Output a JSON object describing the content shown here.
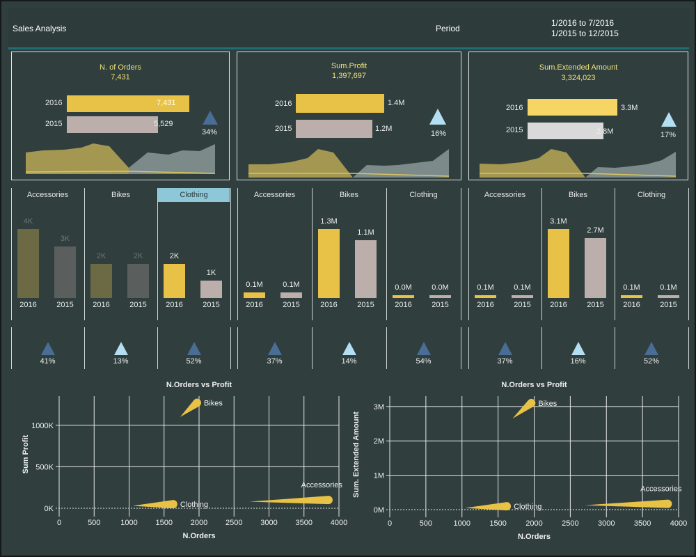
{
  "header": {
    "title": "Sales Analysis",
    "period_label": "Period",
    "range_current": "1/2016 to 7/2016",
    "range_previous": "1/2015 to 12/2015"
  },
  "colors": {
    "bg": "#303e3e",
    "accent": "#e8c246",
    "accent_light": "#f5d564",
    "prev": "#bbaeab",
    "prev_light": "#d9d9d9",
    "tri_dark": "#4a6d96",
    "tri_light": "#b4dff2"
  },
  "kpis": [
    {
      "title": "N. of Orders",
      "value": "7,431",
      "bars": [
        {
          "year": "2016",
          "label": "7,431",
          "v": 7431
        },
        {
          "year": "2015",
          "label": "5,529",
          "v": 5529
        }
      ],
      "pct": "34%",
      "tri": "dark",
      "max": 7431
    },
    {
      "title": "Sum.Profit",
      "value": "1,397,697",
      "bars": [
        {
          "year": "2016",
          "label": "1.4M",
          "v": 1.4
        },
        {
          "year": "2015",
          "label": "1.2M",
          "v": 1.2
        }
      ],
      "pct": "16%",
      "tri": "light",
      "max": 1.4
    },
    {
      "title": "Sum.Extended Amount",
      "value": "3,324,023",
      "bars": [
        {
          "year": "2016",
          "label": "3.3M",
          "v": 3.3
        },
        {
          "year": "2015",
          "label": "2.8M",
          "v": 2.8
        }
      ],
      "pct": "17%",
      "tri": "light",
      "max": 3.3
    }
  ],
  "chart_data": [
    {
      "type": "bar",
      "title": "",
      "categories": [
        "Accessories",
        "Bikes",
        "Clothing"
      ],
      "selected": "Clothing",
      "series": [
        {
          "name": "2016",
          "values": [
            4,
            2,
            2
          ],
          "labels": [
            "4K",
            "2K",
            "2K"
          ]
        },
        {
          "name": "2015",
          "values": [
            3,
            2,
            1
          ],
          "labels": [
            "3K",
            "2K",
            "1K"
          ]
        }
      ],
      "max": 4.7,
      "change": [
        "41%",
        "13%",
        "52%"
      ],
      "tri": [
        "dark",
        "light",
        "dark"
      ]
    },
    {
      "type": "bar",
      "title": "",
      "categories": [
        "Accessories",
        "Bikes",
        "Clothing"
      ],
      "series": [
        {
          "name": "2016",
          "values": [
            0.1,
            1.3,
            0.0
          ],
          "labels": [
            "0.1M",
            "1.3M",
            "0.0M"
          ]
        },
        {
          "name": "2015",
          "values": [
            0.1,
            1.1,
            0.0
          ],
          "labels": [
            "0.1M",
            "1.1M",
            "0.0M"
          ]
        }
      ],
      "max": 1.53,
      "change": [
        "37%",
        "14%",
        "54%"
      ],
      "tri": [
        "dark",
        "light",
        "dark"
      ]
    },
    {
      "type": "bar",
      "title": "",
      "categories": [
        "Accessories",
        "Bikes",
        "Clothing"
      ],
      "series": [
        {
          "name": "2016",
          "values": [
            0.1,
            3.1,
            0.1
          ],
          "labels": [
            "0.1M",
            "3.1M",
            "0.1M"
          ]
        },
        {
          "name": "2015",
          "values": [
            0.1,
            2.7,
            0.1
          ],
          "labels": [
            "0.1M",
            "2.7M",
            "0.1M"
          ]
        }
      ],
      "max": 3.65,
      "change": [
        "37%",
        "16%",
        "52%"
      ],
      "tri": [
        "dark",
        "light",
        "dark"
      ]
    },
    {
      "type": "scatter",
      "title": "N.Orders vs Profit",
      "xlabel": "N.Orders",
      "ylabel": "Sum Profit",
      "xlim": [
        0,
        4000
      ],
      "xticks": [
        0,
        500,
        1000,
        1500,
        2000,
        2500,
        3000,
        3500,
        4000
      ],
      "ylim": [
        -50,
        1350
      ],
      "yticks": [
        0,
        500,
        1000
      ],
      "ytick_labels": [
        "0K",
        "500K",
        "1000K"
      ],
      "points": [
        {
          "name": "Bikes",
          "from": [
            1730,
            1100
          ],
          "to": [
            1970,
            1270
          ]
        },
        {
          "name": "Clothing",
          "from": [
            1050,
            30
          ],
          "to": [
            1630,
            50
          ]
        },
        {
          "name": "Accessories",
          "from": [
            2720,
            80
          ],
          "to": [
            3850,
            100
          ]
        }
      ]
    },
    {
      "type": "scatter",
      "title": "N.Orders vs Profit",
      "xlabel": "N.Orders",
      "ylabel": "Sum. Extended Amount",
      "xlim": [
        0,
        4000
      ],
      "xticks": [
        0,
        500,
        1000,
        1500,
        2000,
        2500,
        3000,
        3500,
        4000
      ],
      "ylim": [
        -0.1,
        3.3
      ],
      "yticks": [
        0,
        1,
        2,
        3
      ],
      "ytick_labels": [
        "0M",
        "1M",
        "2M",
        "3M"
      ],
      "points": [
        {
          "name": "Bikes",
          "from": [
            1700,
            2.65
          ],
          "to": [
            1960,
            3.1
          ]
        },
        {
          "name": "Clothing",
          "from": [
            1040,
            0.05
          ],
          "to": [
            1620,
            0.1
          ]
        },
        {
          "name": "Accessories",
          "from": [
            2700,
            0.13
          ],
          "to": [
            3850,
            0.17
          ]
        }
      ]
    }
  ]
}
